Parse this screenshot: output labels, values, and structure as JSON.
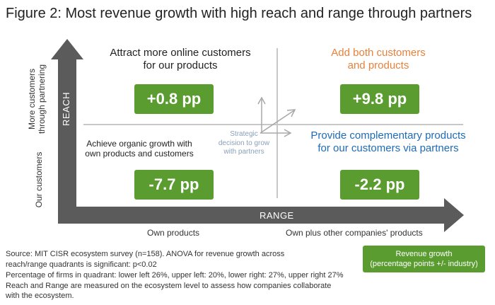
{
  "title": "Figure 2: Most revenue growth with high reach and range through partners",
  "axes": {
    "reach_label": "REACH",
    "range_label": "RANGE",
    "y_top_label_line1": "More customers",
    "y_top_label_line2": "through partnering",
    "y_bottom_label": "Our customers",
    "x_left_label": "Own products",
    "x_right_label": "Own plus other companies' products"
  },
  "quadrants": {
    "upper_left": {
      "label_line1": "Attract more online customers",
      "label_line2": "for our products",
      "value": "+0.8 pp"
    },
    "upper_right": {
      "label_line1": "Add both customers",
      "label_line2": "and products",
      "value": "+9.8 pp"
    },
    "lower_left": {
      "label_line1": "Achieve organic growth with",
      "label_line2": "own products and customers",
      "value": "-7.7 pp"
    },
    "lower_right": {
      "label_line1": "Provide complementary products",
      "label_line2": "for our customers via partners",
      "value": "-2.2 pp"
    }
  },
  "center_note": {
    "line1": "Strategic",
    "line2": "decision to grow",
    "line3": "with partners"
  },
  "legend": {
    "line1": "Revenue growth",
    "line2": "(percentage points +/- industry)"
  },
  "footnotes": {
    "line1": "Source: MIT CISR ecosystem survey (n=158). ANOVA for revenue growth across",
    "line2": "reach/range quadrants is significant: p<0.02",
    "line3": "Percentage of firms in quadrant: lower left 26%, upper left: 20%, lower right: 27%, upper right 27%",
    "line4": "Reach and Range are measured on the ecosystem level to assess how companies collaborate",
    "line5": "with the ecosystem."
  },
  "colors": {
    "value_box": "#5a9c2f",
    "axis": "#5b5b5b",
    "upper_right_label": "#e8813a",
    "lower_right_label": "#1f6bb5",
    "center_note": "#8aa0b8"
  }
}
